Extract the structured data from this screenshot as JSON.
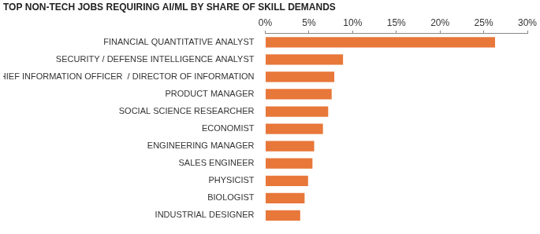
{
  "chart_data": {
    "type": "bar",
    "orientation": "horizontal",
    "title": "TOP NON-TECH JOBS REQUIRING AI/ML BY SHARE OF SKILL DEMANDS",
    "categories": [
      "FINANCIAL QUANTITATIVE ANALYST",
      "SECURITY / DEFENSE INTELLIGENCE ANALYST",
      "CHIEF INFORMATION OFFICER  / DIRECTOR OF INFORMATION",
      "PRODUCT MANAGER",
      "SOCIAL SCIENCE RESEARCHER",
      "ECONOMIST",
      "ENGINEERING MANAGER",
      "SALES ENGINEER",
      "PHYSICIST",
      "BIOLOGIST",
      "INDUSTRIAL DESIGNER"
    ],
    "values": [
      26.3,
      8.9,
      7.9,
      7.6,
      7.2,
      6.6,
      5.6,
      5.4,
      4.9,
      4.5,
      4.0
    ],
    "color": "#e8773a",
    "xlim": [
      0,
      30
    ],
    "xticks": [
      {
        "value": 0,
        "label": "0%"
      },
      {
        "value": 5,
        "label": "5%"
      },
      {
        "value": 10,
        "label": "10%"
      },
      {
        "value": 15,
        "label": "15%"
      },
      {
        "value": 20,
        "label": "20%"
      },
      {
        "value": 25,
        "label": "25%"
      },
      {
        "value": 30,
        "label": "30%"
      }
    ],
    "grid": false
  }
}
